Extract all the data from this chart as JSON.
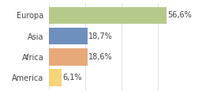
{
  "categories": [
    "Europa",
    "Asia",
    "Africa",
    "America"
  ],
  "values": [
    56.6,
    18.7,
    18.6,
    6.1
  ],
  "labels": [
    "56,6%",
    "18,7%",
    "18,6%",
    "6,1%"
  ],
  "bar_colors": [
    "#b5c98a",
    "#6f8fbf",
    "#e8a97a",
    "#f5d47a"
  ],
  "background_color": "#ffffff",
  "xlim": [
    0,
    70
  ],
  "label_fontsize": 7,
  "tick_fontsize": 7,
  "grid_color": "#dddddd",
  "grid_positions": [
    0,
    17.5,
    35,
    52.5,
    70
  ]
}
